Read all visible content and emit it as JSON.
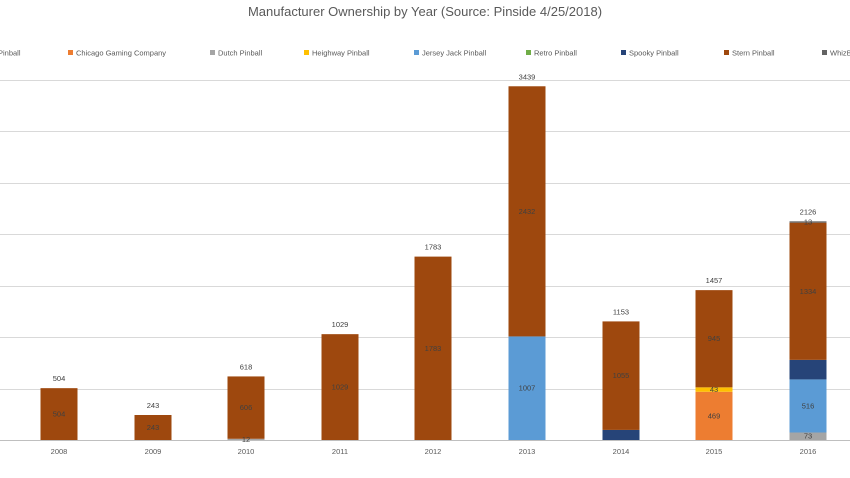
{
  "chart_data": {
    "type": "bar",
    "stacked": true,
    "title": "Manufacturer Ownership by Year (Source: Pinside 4/25/2018)",
    "xlabel": "",
    "ylabel": "",
    "categories": [
      "2008",
      "2009",
      "2010",
      "2011",
      "2012",
      "2013",
      "2014",
      "2015",
      "2016"
    ],
    "ylim": [
      0,
      3500
    ],
    "grid": true,
    "legend_position": "top",
    "legend_labels": [
      "Pinball",
      "Chicago Gaming Company",
      "Dutch Pinball",
      "Heighway Pinball",
      "Jersey Jack Pinball",
      "Retro Pinball",
      "Spooky Pinball",
      "Stern Pinball",
      "WhizB"
    ],
    "series": [
      {
        "name": "Chicago Gaming Company",
        "color": "#ED7D31",
        "values": [
          0,
          0,
          0,
          0,
          0,
          0,
          0,
          469,
          0
        ],
        "labels": [
          "",
          "",
          "",
          "",
          "",
          "",
          "",
          "469",
          ""
        ]
      },
      {
        "name": "Dutch Pinball",
        "color": "#A5A5A5",
        "values": [
          0,
          0,
          12,
          0,
          0,
          0,
          0,
          0,
          73
        ],
        "labels": [
          "",
          "",
          "12",
          "",
          "",
          "",
          "",
          "",
          "73"
        ]
      },
      {
        "name": "Heighway Pinball",
        "color": "#FFC000",
        "values": [
          0,
          0,
          0,
          0,
          0,
          0,
          0,
          43,
          0
        ],
        "labels": [
          "",
          "",
          "",
          "",
          "",
          "",
          "",
          "43",
          ""
        ]
      },
      {
        "name": "Jersey Jack Pinball",
        "color": "#5B9BD5",
        "values": [
          0,
          0,
          0,
          0,
          0,
          1007,
          0,
          0,
          516
        ],
        "labels": [
          "",
          "",
          "",
          "",
          "",
          "1007",
          "",
          "",
          "516"
        ]
      },
      {
        "name": "Retro Pinball",
        "color": "#70AD47",
        "values": [
          0,
          0,
          0,
          0,
          0,
          0,
          0,
          0,
          0
        ],
        "labels": [
          "",
          "",
          "",
          "",
          "",
          "",
          "",
          "",
          ""
        ]
      },
      {
        "name": "Spooky Pinball",
        "color": "#264478",
        "values": [
          0,
          0,
          0,
          0,
          0,
          0,
          98,
          0,
          190
        ],
        "labels": [
          "",
          "",
          "",
          "",
          "",
          "",
          "",
          "",
          ""
        ]
      },
      {
        "name": "Stern Pinball",
        "color": "#9E480E",
        "values": [
          504,
          243,
          606,
          1029,
          1783,
          2432,
          1055,
          945,
          1334
        ],
        "labels": [
          "504",
          "243",
          "606",
          "1029",
          "1783",
          "2432",
          "1055",
          "945",
          "1334"
        ]
      },
      {
        "name": "WhizB",
        "color": "#636363",
        "values": [
          0,
          0,
          0,
          0,
          0,
          0,
          0,
          0,
          13
        ],
        "labels": [
          "",
          "",
          "",
          "",
          "",
          "",
          "",
          "",
          "13"
        ]
      }
    ],
    "totals": [
      "504",
      "243",
      "618",
      "1029",
      "1783",
      "3439",
      "1153",
      "1457",
      "2126"
    ]
  }
}
